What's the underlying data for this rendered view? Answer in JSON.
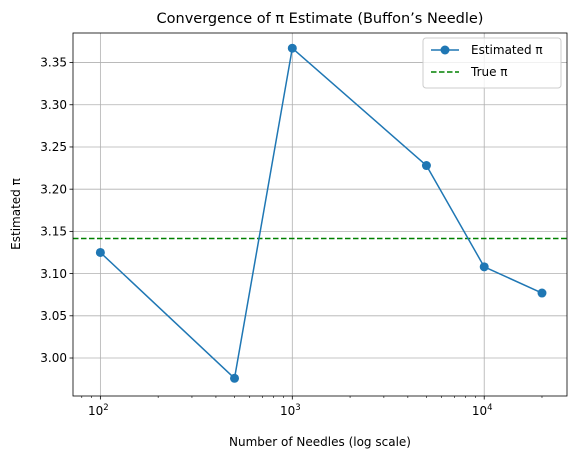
{
  "chart_data": {
    "type": "line",
    "title": "Convergence of π Estimate (Buffon’s Needle)",
    "xlabel": "Number of Needles (log scale)",
    "ylabel": "Estimated π",
    "xscale": "log",
    "xlim": [
      72,
      27000
    ],
    "ylim": [
      2.955,
      3.385
    ],
    "grid": true,
    "legend_position": "top-right",
    "x_ticks": [
      {
        "value": 100,
        "base": "10",
        "exp": "2"
      },
      {
        "value": 1000,
        "base": "10",
        "exp": "3"
      },
      {
        "value": 10000,
        "base": "10",
        "exp": "4"
      }
    ],
    "y_ticks": [
      "3.00",
      "3.05",
      "3.10",
      "3.15",
      "3.20",
      "3.25",
      "3.30",
      "3.35"
    ],
    "series": [
      {
        "name": "Estimated π",
        "color": "#1f77b4",
        "style": "solid",
        "marker": "circle",
        "x": [
          100,
          500,
          1000,
          5000,
          10000,
          20000
        ],
        "y": [
          3.125,
          2.976,
          3.367,
          3.228,
          3.108,
          3.077
        ]
      }
    ],
    "reference_lines": [
      {
        "name": "True π",
        "color": "#008000",
        "style": "dashed",
        "y": 3.14159
      }
    ]
  }
}
